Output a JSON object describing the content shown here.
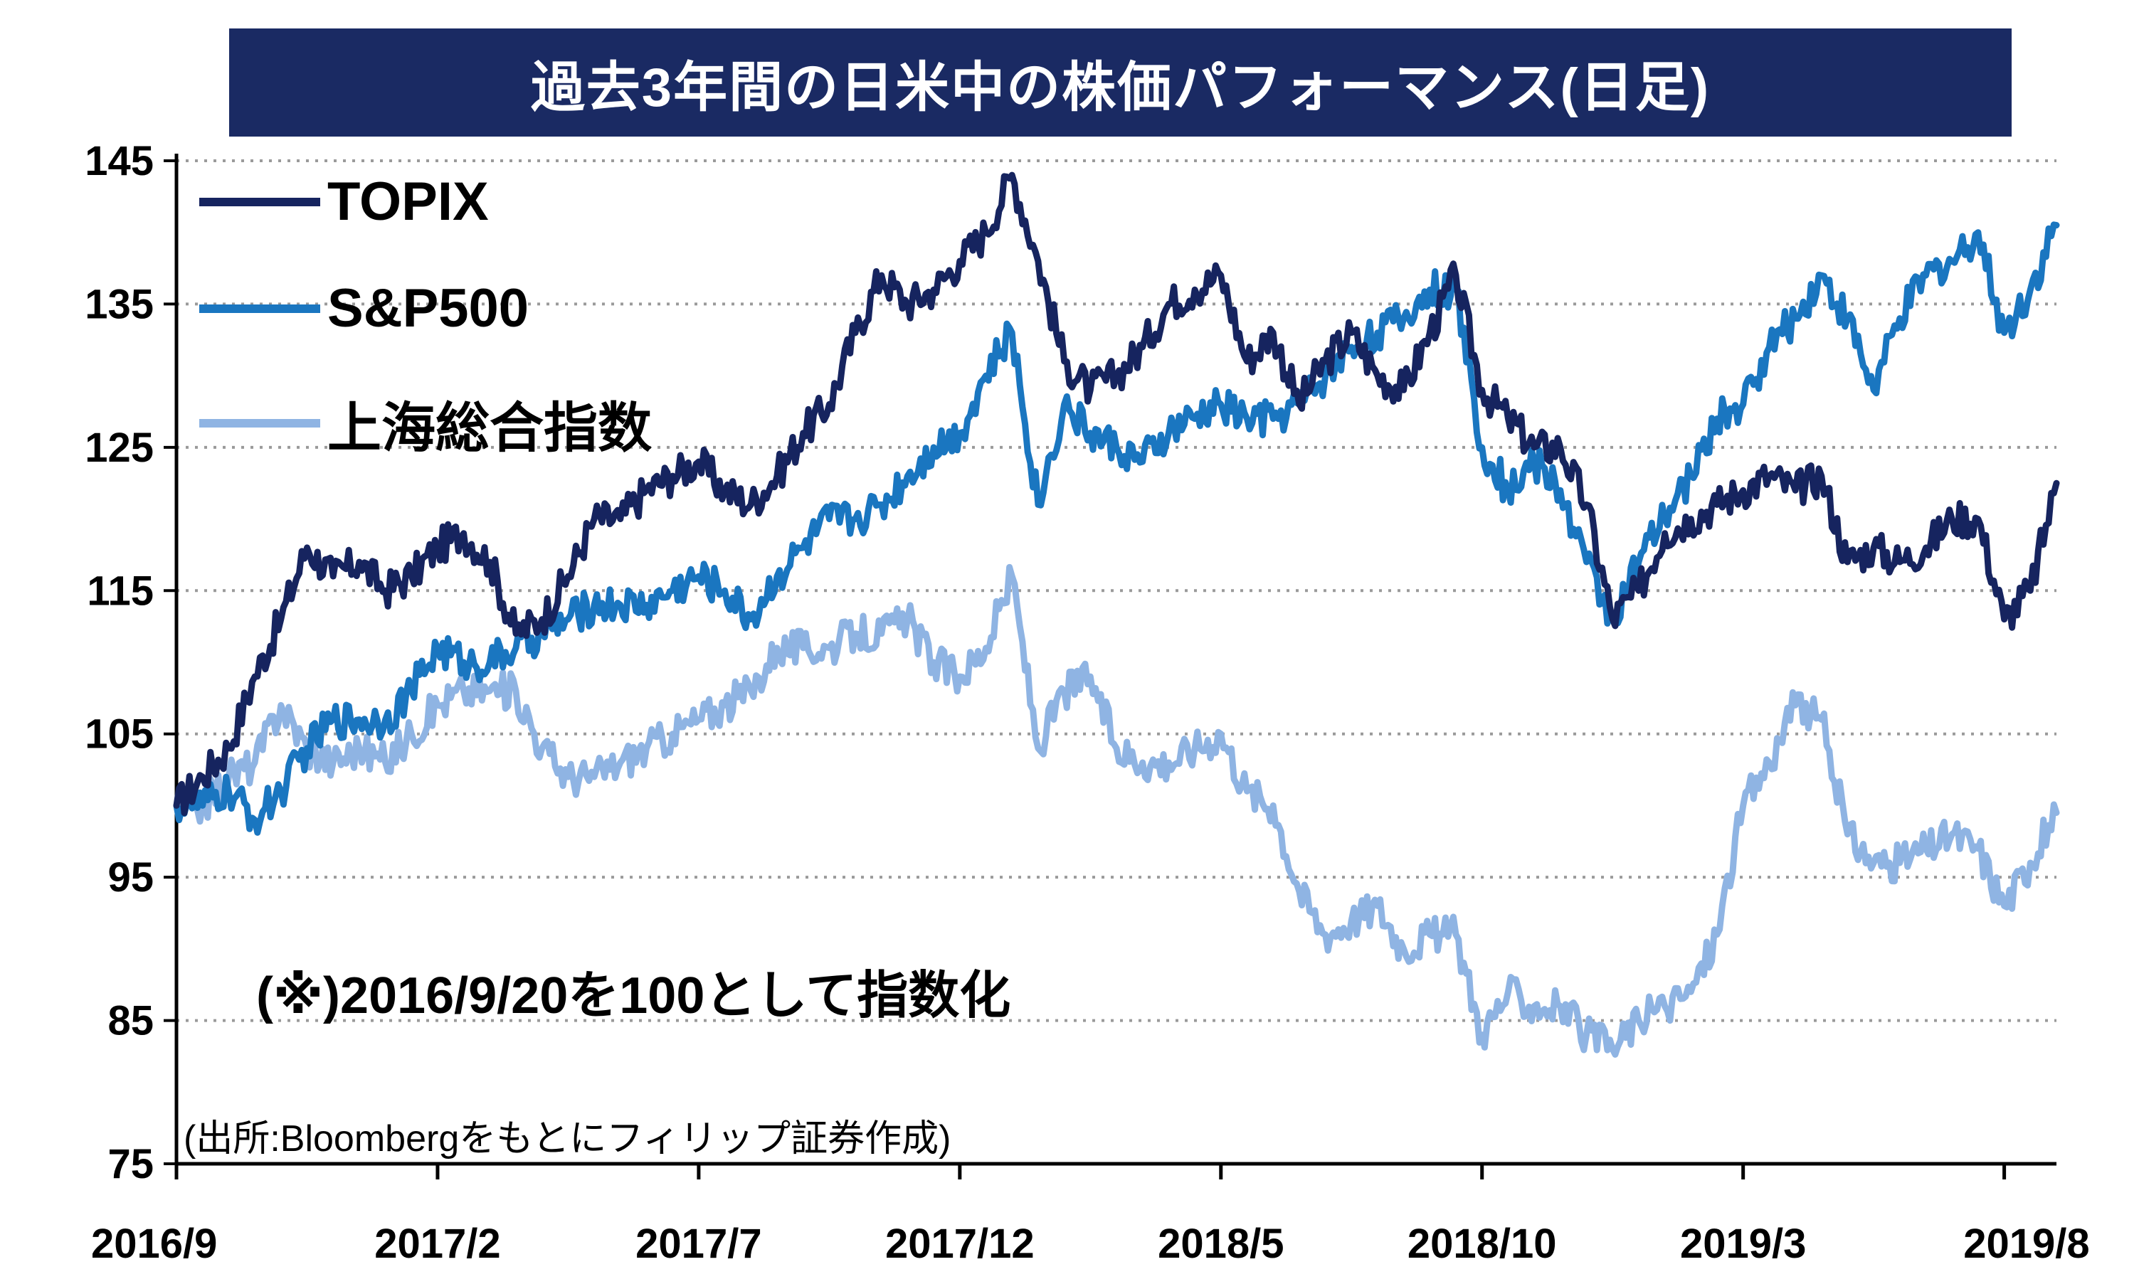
{
  "title": "過去3年間の日米中の株価パフォーマンス(日足)",
  "note": "(※)2016/9/20を100として指数化",
  "source": "(出所:Bloombergをもとにフィリップ証券作成)",
  "colors": {
    "title_bg": "#1a2a63",
    "topix": "#16245f",
    "sp500": "#1a76c0",
    "shanghai": "#8fb4e3",
    "grid": "#9a9a9a"
  },
  "chart_data": {
    "type": "line",
    "title": "過去3年間の日米中の株価パフォーマンス(日足)",
    "xlabel": "",
    "ylabel": "",
    "ylim": [
      75,
      145
    ],
    "y_ticks": [
      145,
      135,
      125,
      115,
      105,
      95,
      85,
      75
    ],
    "x_ticks": [
      {
        "label": "2016/9",
        "t": 0
      },
      {
        "label": "2017/2",
        "t": 5
      },
      {
        "label": "2017/7",
        "t": 10
      },
      {
        "label": "2017/12",
        "t": 15
      },
      {
        "label": "2018/5",
        "t": 20
      },
      {
        "label": "2018/10",
        "t": 25
      },
      {
        "label": "2019/3",
        "t": 30
      },
      {
        "label": "2019/8",
        "t": 35
      }
    ],
    "x_range": [
      0,
      36
    ],
    "grid": "horizontal-dotted",
    "legend_position": "top-left",
    "series": [
      {
        "name": "TOPIX",
        "color": "#16245f",
        "points": [
          [
            0,
            100
          ],
          [
            0.5,
            102
          ],
          [
            1,
            104
          ],
          [
            1.5,
            109
          ],
          [
            2,
            113
          ],
          [
            2.5,
            118
          ],
          [
            3,
            116
          ],
          [
            3.5,
            117
          ],
          [
            4,
            115
          ],
          [
            4.5,
            116
          ],
          [
            5,
            118
          ],
          [
            5.5,
            119
          ],
          [
            6,
            117
          ],
          [
            6.5,
            112
          ],
          [
            7,
            113
          ],
          [
            7.5,
            116
          ],
          [
            8,
            120
          ],
          [
            8.5,
            120
          ],
          [
            9,
            122
          ],
          [
            9.5,
            123
          ],
          [
            10,
            124
          ],
          [
            10.5,
            122
          ],
          [
            11,
            121
          ],
          [
            11.5,
            123
          ],
          [
            12,
            126
          ],
          [
            12.5,
            128
          ],
          [
            13,
            133
          ],
          [
            13.5,
            137
          ],
          [
            14,
            135
          ],
          [
            14.5,
            136
          ],
          [
            15,
            138
          ],
          [
            15.5,
            140
          ],
          [
            16,
            144
          ],
          [
            16.5,
            138
          ],
          [
            17,
            131
          ],
          [
            17.5,
            129
          ],
          [
            18,
            130
          ],
          [
            18.5,
            132
          ],
          [
            19,
            135
          ],
          [
            19.5,
            136
          ],
          [
            20,
            137
          ],
          [
            20.5,
            131
          ],
          [
            21,
            133
          ],
          [
            21.5,
            128
          ],
          [
            22,
            131
          ],
          [
            22.5,
            133
          ],
          [
            23,
            130
          ],
          [
            23.5,
            129
          ],
          [
            24,
            133
          ],
          [
            24.5,
            137
          ],
          [
            25,
            129
          ],
          [
            25.5,
            127
          ],
          [
            26,
            125
          ],
          [
            26.5,
            125
          ],
          [
            27,
            121
          ],
          [
            27.5,
            113
          ],
          [
            28,
            115
          ],
          [
            28.5,
            119
          ],
          [
            29,
            120
          ],
          [
            29.5,
            121
          ],
          [
            30,
            122
          ],
          [
            30.5,
            123
          ],
          [
            31,
            122
          ],
          [
            31.5,
            123
          ],
          [
            32,
            117
          ],
          [
            32.5,
            118
          ],
          [
            33,
            117
          ],
          [
            33.5,
            118
          ],
          [
            34,
            120
          ],
          [
            34.5,
            120
          ],
          [
            35,
            113
          ],
          [
            35.5,
            115
          ],
          [
            36,
            122.5
          ]
        ]
      },
      {
        "name": "S&P500",
        "color": "#1a76c0",
        "points": [
          [
            0,
            100
          ],
          [
            0.5,
            100
          ],
          [
            1,
            101
          ],
          [
            1.5,
            99
          ],
          [
            2,
            101
          ],
          [
            2.5,
            104
          ],
          [
            3,
            106
          ],
          [
            3.5,
            106
          ],
          [
            4,
            106
          ],
          [
            4.5,
            108
          ],
          [
            5,
            111
          ],
          [
            5.5,
            110
          ],
          [
            6,
            110
          ],
          [
            6.5,
            111
          ],
          [
            7,
            112
          ],
          [
            7.5,
            113
          ],
          [
            8,
            114
          ],
          [
            8.5,
            114
          ],
          [
            9,
            114
          ],
          [
            9.5,
            115
          ],
          [
            10,
            116
          ],
          [
            10.5,
            115
          ],
          [
            11,
            113
          ],
          [
            11.5,
            116
          ],
          [
            12,
            118
          ],
          [
            12.5,
            120
          ],
          [
            13,
            120
          ],
          [
            13.5,
            121
          ],
          [
            14,
            123
          ],
          [
            14.5,
            125
          ],
          [
            15,
            126
          ],
          [
            15.5,
            130
          ],
          [
            16,
            133
          ],
          [
            16.5,
            121
          ],
          [
            17,
            128
          ],
          [
            17.5,
            126
          ],
          [
            18,
            125
          ],
          [
            18.5,
            124
          ],
          [
            19,
            126
          ],
          [
            19.5,
            127
          ],
          [
            20,
            128
          ],
          [
            20.5,
            127
          ],
          [
            21,
            127
          ],
          [
            21.5,
            128
          ],
          [
            22,
            130
          ],
          [
            22.5,
            132
          ],
          [
            23,
            133
          ],
          [
            23.5,
            134
          ],
          [
            24,
            136
          ],
          [
            24.5,
            136
          ],
          [
            25,
            125
          ],
          [
            25.5,
            122
          ],
          [
            26,
            124
          ],
          [
            26.5,
            122
          ],
          [
            27,
            117
          ],
          [
            27.5,
            113
          ],
          [
            28,
            117
          ],
          [
            28.5,
            120
          ],
          [
            29,
            123
          ],
          [
            29.5,
            127
          ],
          [
            30,
            128
          ],
          [
            30.5,
            132
          ],
          [
            31,
            134
          ],
          [
            31.5,
            137
          ],
          [
            32,
            134
          ],
          [
            32.5,
            129
          ],
          [
            33,
            134
          ],
          [
            33.5,
            137
          ],
          [
            34,
            138
          ],
          [
            34.5,
            140
          ],
          [
            35,
            133
          ],
          [
            35.5,
            136
          ],
          [
            36,
            140.5
          ]
        ]
      },
      {
        "name": "上海総合指数",
        "color": "#8fb4e3",
        "points": [
          [
            0,
            100
          ],
          [
            0.5,
            100
          ],
          [
            1,
            102
          ],
          [
            1.5,
            103
          ],
          [
            2,
            107
          ],
          [
            2.5,
            104
          ],
          [
            3,
            103
          ],
          [
            3.5,
            104
          ],
          [
            4,
            103
          ],
          [
            4.5,
            105
          ],
          [
            5,
            107
          ],
          [
            5.5,
            108
          ],
          [
            6,
            108
          ],
          [
            6.5,
            108
          ],
          [
            7,
            104
          ],
          [
            7.5,
            102
          ],
          [
            8,
            102
          ],
          [
            8.5,
            103
          ],
          [
            9,
            104
          ],
          [
            9.5,
            105
          ],
          [
            10,
            106
          ],
          [
            10.5,
            107
          ],
          [
            11,
            108
          ],
          [
            11.5,
            111
          ],
          [
            12,
            111
          ],
          [
            12.5,
            111
          ],
          [
            13,
            112
          ],
          [
            13.5,
            112
          ],
          [
            14,
            113
          ],
          [
            14.5,
            110
          ],
          [
            15,
            109
          ],
          [
            15.5,
            111
          ],
          [
            16,
            116
          ],
          [
            16.5,
            104
          ],
          [
            17,
            108
          ],
          [
            17.5,
            109
          ],
          [
            18,
            104
          ],
          [
            18.5,
            103
          ],
          [
            19,
            103
          ],
          [
            19.5,
            104
          ],
          [
            20,
            105
          ],
          [
            20.5,
            101
          ],
          [
            21,
            100
          ],
          [
            21.5,
            94
          ],
          [
            22,
            91
          ],
          [
            22.5,
            92
          ],
          [
            23,
            93
          ],
          [
            23.5,
            90
          ],
          [
            24,
            91
          ],
          [
            24.5,
            91
          ],
          [
            25,
            84
          ],
          [
            25.5,
            87
          ],
          [
            26,
            86
          ],
          [
            26.5,
            86
          ],
          [
            27,
            84
          ],
          [
            27.5,
            83
          ],
          [
            28,
            85
          ],
          [
            28.5,
            86
          ],
          [
            29,
            87
          ],
          [
            29.5,
            91
          ],
          [
            30,
            100
          ],
          [
            30.5,
            103
          ],
          [
            31,
            107
          ],
          [
            31.5,
            106
          ],
          [
            32,
            98
          ],
          [
            32.5,
            96
          ],
          [
            33,
            96
          ],
          [
            33.5,
            97
          ],
          [
            34,
            98
          ],
          [
            34.5,
            97
          ],
          [
            35,
            93
          ],
          [
            35.5,
            96
          ],
          [
            36,
            99.5
          ]
        ]
      }
    ]
  }
}
